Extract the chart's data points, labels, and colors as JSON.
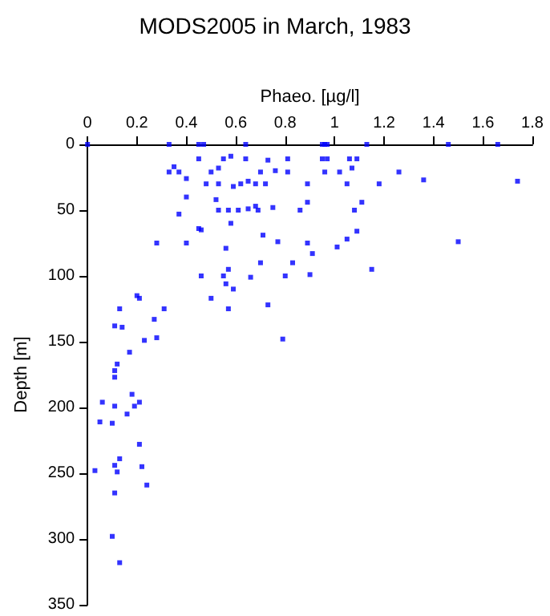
{
  "chart_data": {
    "type": "scatter",
    "title": "MODS2005 in March, 1983",
    "xlabel": "Phaeo. [µg/l]",
    "ylabel": "Depth [m]",
    "xlim": [
      0,
      1.8
    ],
    "xticks": [
      0,
      0.2,
      0.4,
      0.6,
      0.8,
      1,
      1.2,
      1.4,
      1.6,
      1.8
    ],
    "ylim": [
      350,
      0
    ],
    "yticks": [
      0,
      50,
      100,
      150,
      200,
      250,
      300,
      350
    ],
    "marker": "square",
    "series": [
      {
        "color": "#0000ff",
        "x": [
          0,
          0.33,
          0.45,
          0.47,
          0.64,
          0.45,
          0.55,
          0.58,
          0.64,
          0.73,
          0.81,
          0.33,
          0.35,
          0.37,
          0.4,
          0.5,
          0.53,
          0.7,
          0.76,
          0.81,
          0.48,
          0.53,
          0.59,
          0.62,
          0.65,
          0.68,
          0.72,
          0.89,
          0.4,
          0.52,
          0.89,
          0.37,
          0.53,
          0.57,
          0.61,
          0.65,
          0.68,
          0.69,
          0.75,
          0.86,
          0.45,
          0.46,
          0.58,
          0.28,
          0.4,
          0.56,
          0.71,
          0.77,
          0.89,
          0.7,
          0.83,
          0.57,
          0.46,
          0.55,
          0.66,
          0.8,
          0.9,
          0.95,
          0.96,
          0.97,
          1.13,
          1.46,
          1.66,
          0.95,
          0.97,
          1.06,
          1.09,
          0.96,
          1.02,
          1.07,
          1.26,
          1.36,
          1.74,
          1.05,
          1.18,
          1.11,
          1.08,
          1.09,
          1.05,
          1.01,
          1.5,
          0.91,
          1.15,
          0.5,
          0.56,
          0.59,
          0.57,
          0.73,
          0.79,
          0.2,
          0.21,
          0.13,
          0.31,
          0.11,
          0.14,
          0.27,
          0.23,
          0.28,
          0.17,
          0.12,
          0.11,
          0.11,
          0.06,
          0.11,
          0.18,
          0.21,
          0.19,
          0.16,
          0.05,
          0.1,
          0.21,
          0.03,
          0.11,
          0.13,
          0.12,
          0.22,
          0.24,
          0.11,
          0.1,
          0.13
        ],
        "values": [
          0,
          0,
          0,
          0,
          0,
          11,
          11,
          9,
          11,
          12,
          11,
          21,
          17,
          21,
          26,
          21,
          18,
          21,
          20,
          21,
          30,
          30,
          32,
          30,
          28,
          30,
          30,
          30,
          40,
          42,
          44,
          53,
          50,
          50,
          50,
          49,
          47,
          50,
          48,
          50,
          64,
          65,
          60,
          75,
          75,
          79,
          69,
          74,
          75,
          90,
          90,
          95,
          100,
          100,
          101,
          100,
          99,
          0,
          0,
          0,
          0,
          0,
          0,
          11,
          11,
          11,
          11,
          21,
          21,
          18,
          21,
          27,
          28,
          30,
          30,
          44,
          50,
          66,
          72,
          78,
          74,
          83,
          95,
          117,
          106,
          110,
          125,
          122,
          148,
          115,
          117,
          125,
          125,
          138,
          139,
          133,
          149,
          147,
          158,
          167,
          172,
          177,
          196,
          199,
          190,
          196,
          199,
          205,
          211,
          212,
          228,
          248,
          244,
          239,
          249,
          245,
          259,
          265,
          298,
          318
        ]
      }
    ]
  }
}
